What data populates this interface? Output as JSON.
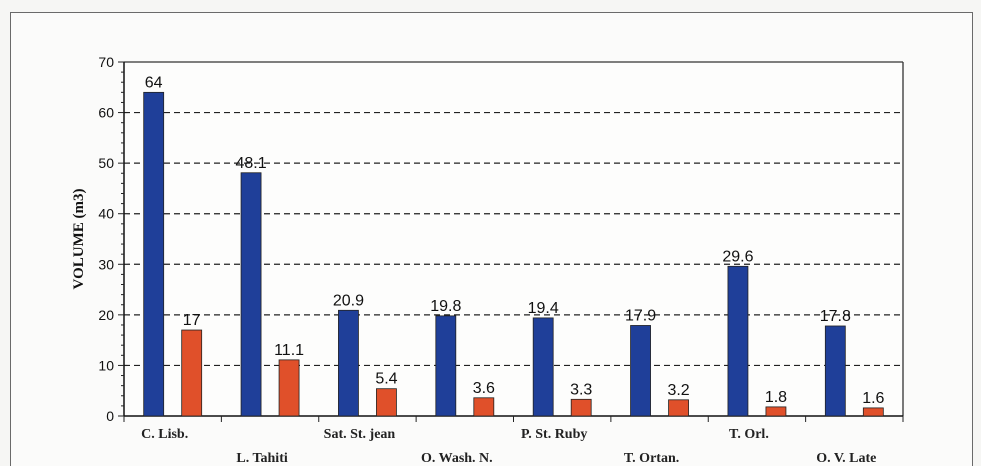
{
  "chart_data": {
    "type": "bar",
    "title": "",
    "xlabel": "",
    "ylabel": "VOLUME (m3)",
    "ylim": [
      0,
      70
    ],
    "yticks": [
      0,
      10,
      20,
      30,
      40,
      50,
      60,
      70
    ],
    "grid": "horizontal dashed",
    "legend": "none",
    "categories": [
      "C. Lisb.",
      "L. Tahiti",
      "Sat. St. jean",
      "O. Wash. N.",
      "P. St. Ruby",
      "T. Ortan.",
      "T. Orl.",
      "O. V. Late"
    ],
    "series": [
      {
        "values": [
          64,
          48.1,
          20.9,
          19.8,
          19.4,
          17.9,
          29.6,
          17.8
        ],
        "color": "#1f3f99"
      },
      {
        "values": [
          17,
          11.1,
          5.4,
          3.6,
          3.3,
          3.2,
          1.8,
          1.6
        ],
        "color": "#e0502a"
      }
    ]
  }
}
